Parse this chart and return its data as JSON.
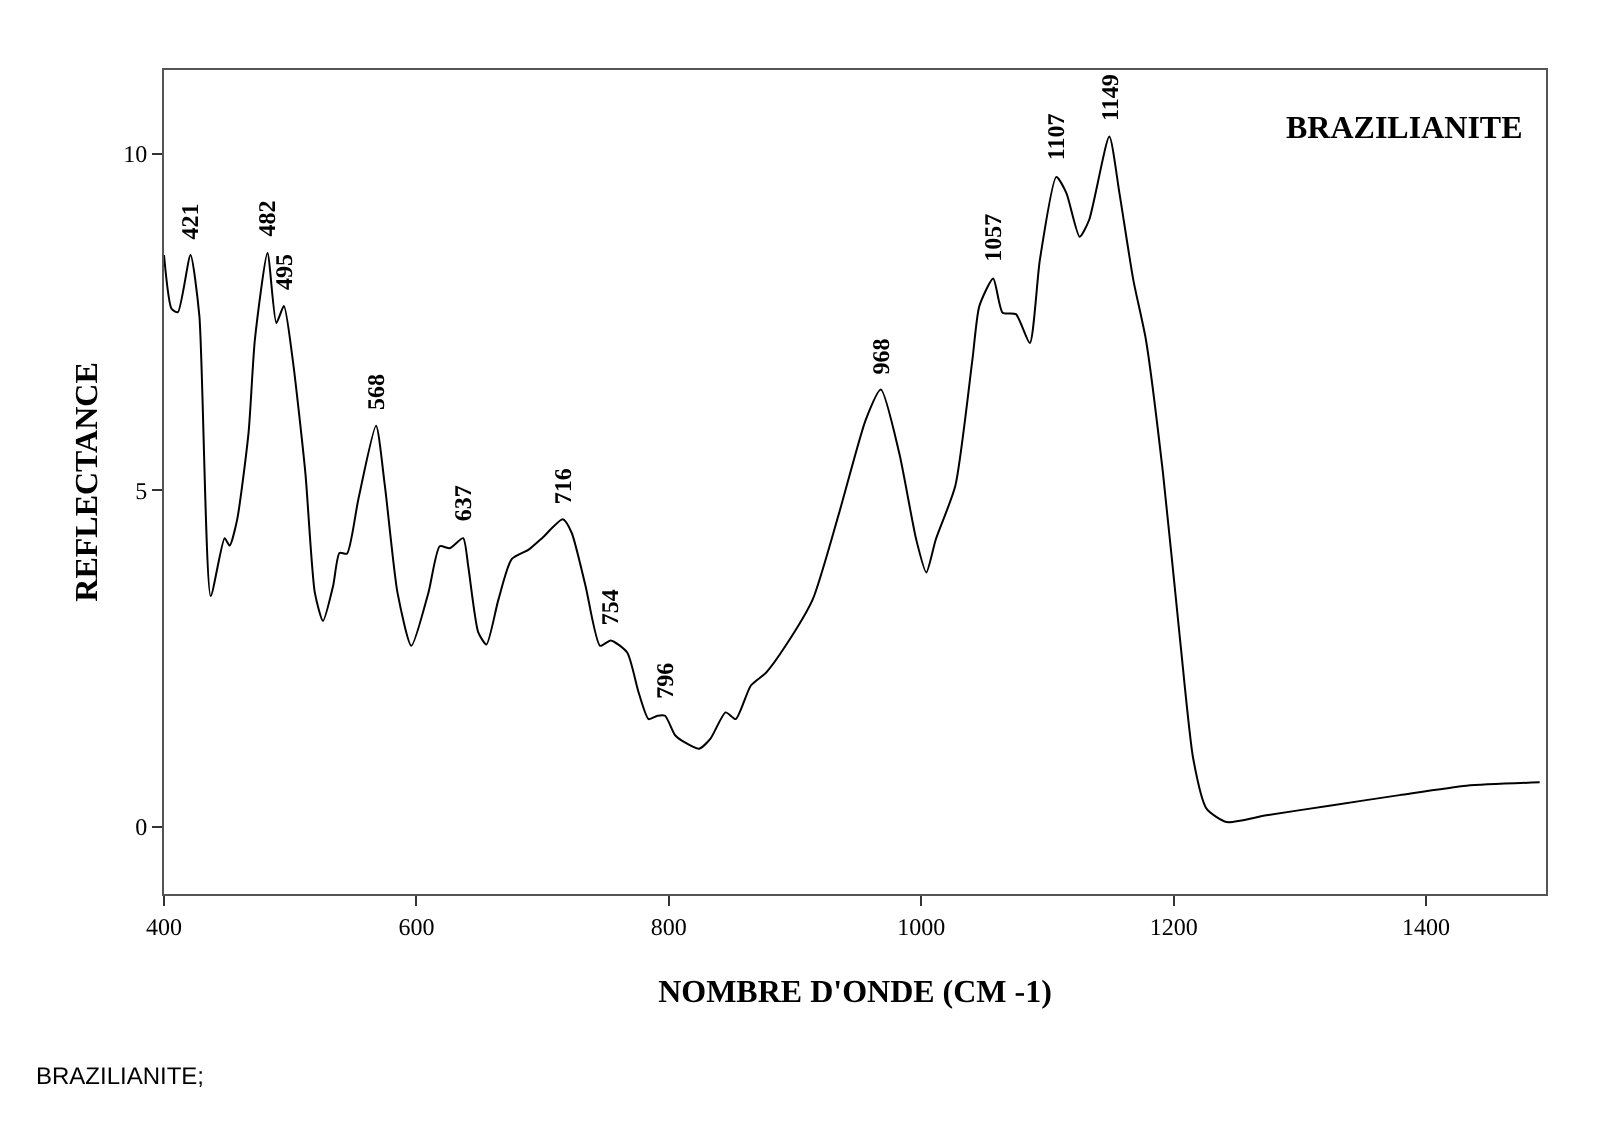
{
  "chart_data": {
    "type": "line",
    "title": "BRAZILIANITE",
    "xlabel": "NOMBRE D'ONDE (CM -1)",
    "ylabel": "REFLECTANCE",
    "x": [
      400,
      406,
      411,
      421,
      428,
      437,
      448,
      452,
      458,
      467,
      472,
      482,
      489,
      495,
      502,
      512,
      519.5,
      526,
      534,
      539,
      545,
      554,
      568,
      575,
      585,
      596,
      609.5,
      618.5,
      626.5,
      637,
      641,
      649,
      655.5,
      665,
      675.5,
      689,
      699.5,
      716,
      723,
      734,
      745.5,
      754,
      767,
      776,
      784,
      791,
      797,
      805,
      812,
      824,
      833,
      845,
      853,
      865,
      877,
      892.5,
      914,
      935,
      956,
      968,
      982.5,
      996,
      1004,
      1011.5,
      1027,
      1040.5,
      1046,
      1057,
      1064.5,
      1075,
      1086,
      1094,
      1107,
      1115,
      1125.5,
      1133,
      1149,
      1157,
      1168,
      1178,
      1191.5,
      1205,
      1215.5,
      1226,
      1242,
      1273.5,
      1326,
      1379,
      1432,
      1490
    ],
    "series": [
      {
        "color": "#000000",
        "values": [
          8.5,
          7.7,
          7.65,
          8.5,
          7.6,
          3.43,
          4.29,
          4.18,
          4.57,
          5.86,
          7.24,
          8.53,
          7.49,
          7.74,
          6.94,
          5.26,
          3.48,
          3.06,
          3.58,
          4.07,
          4.06,
          4.87,
          5.96,
          5.07,
          3.48,
          2.69,
          3.48,
          4.17,
          4.14,
          4.29,
          3.88,
          2.89,
          2.71,
          3.38,
          3.98,
          4.12,
          4.29,
          4.57,
          4.37,
          3.58,
          2.69,
          2.77,
          2.59,
          2.0,
          1.6,
          1.65,
          1.65,
          1.36,
          1.26,
          1.16,
          1.31,
          1.7,
          1.6,
          2.1,
          2.29,
          2.69,
          3.38,
          4.67,
          6.05,
          6.5,
          5.56,
          4.27,
          3.78,
          4.27,
          5.07,
          6.94,
          7.74,
          8.15,
          7.64,
          7.62,
          7.19,
          8.43,
          9.66,
          9.42,
          8.77,
          9.02,
          10.26,
          9.42,
          8.13,
          7.24,
          5.26,
          2.79,
          1.01,
          0.27,
          0.07,
          0.17,
          0.32,
          0.47,
          0.61,
          0.66
        ]
      }
    ],
    "xlim": [
      400,
      1495
    ],
    "ylim": [
      -1,
      11.25
    ],
    "xticks": [
      400,
      600,
      800,
      1000,
      1200,
      1400
    ],
    "yticks": [
      0,
      5,
      10
    ],
    "marker": "none",
    "line_style": "solid",
    "annotations": [
      {
        "text": "421",
        "x": 421,
        "y": 8.5
      },
      {
        "text": "482",
        "x": 482,
        "y": 8.53
      },
      {
        "text": "495",
        "x": 495,
        "y": 7.74
      },
      {
        "text": "568",
        "x": 568,
        "y": 5.96
      },
      {
        "text": "637",
        "x": 637,
        "y": 4.29
      },
      {
        "text": "716",
        "x": 716,
        "y": 4.57
      },
      {
        "text": "754",
        "x": 754,
        "y": 2.77
      },
      {
        "text": "796",
        "x": 797,
        "y": 1.65
      },
      {
        "text": "968",
        "x": 968,
        "y": 6.5
      },
      {
        "text": "1057",
        "x": 1057,
        "y": 8.15
      },
      {
        "text": "1107",
        "x": 1107,
        "y": 9.66
      },
      {
        "text": "1149",
        "x": 1149,
        "y": 10.26
      },
      "BRAZILIANITE;"
    ]
  }
}
